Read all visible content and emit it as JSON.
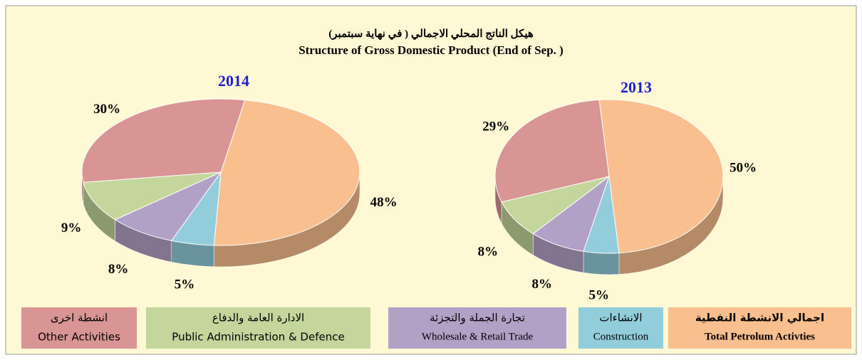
{
  "title_ar": "هيكل الناتج المحلي الاجمالي ( في نهاية سبتمبر)",
  "title_en": "Structure of Gross Domestic Product (End of Sep. )",
  "legend": [
    {
      "name_ar": "اجمالي الانشطة النفطية",
      "name_en": "Total Petrolum Activties",
      "color": "#fabf8f"
    },
    {
      "name_ar": "الانشاءات",
      "name_en": "Construction",
      "color": "#92cddc"
    },
    {
      "name_ar": "تجارة الجملة والتجزئة",
      "name_en": "Wholesale & Retail Trade",
      "color": "#b2a1c7"
    },
    {
      "name_ar": "الادارة العامة والدفاع",
      "name_en": "Public Administration & Defence",
      "color": "#c3d69b"
    },
    {
      "name_ar": "انشطة اخرى",
      "name_en": "Other Activities",
      "color": "#d99594"
    }
  ],
  "chart_data": [
    {
      "type": "pie",
      "title": "2014",
      "values": [
        48,
        5,
        8,
        9,
        30
      ],
      "value_labels": [
        "48%",
        "5%",
        "8%",
        "9%",
        "30%"
      ]
    },
    {
      "type": "pie",
      "title": "2013",
      "values": [
        50,
        5,
        8,
        8,
        29
      ],
      "value_labels": [
        "50%",
        "5%",
        "8%",
        "8%",
        "29%"
      ]
    }
  ]
}
